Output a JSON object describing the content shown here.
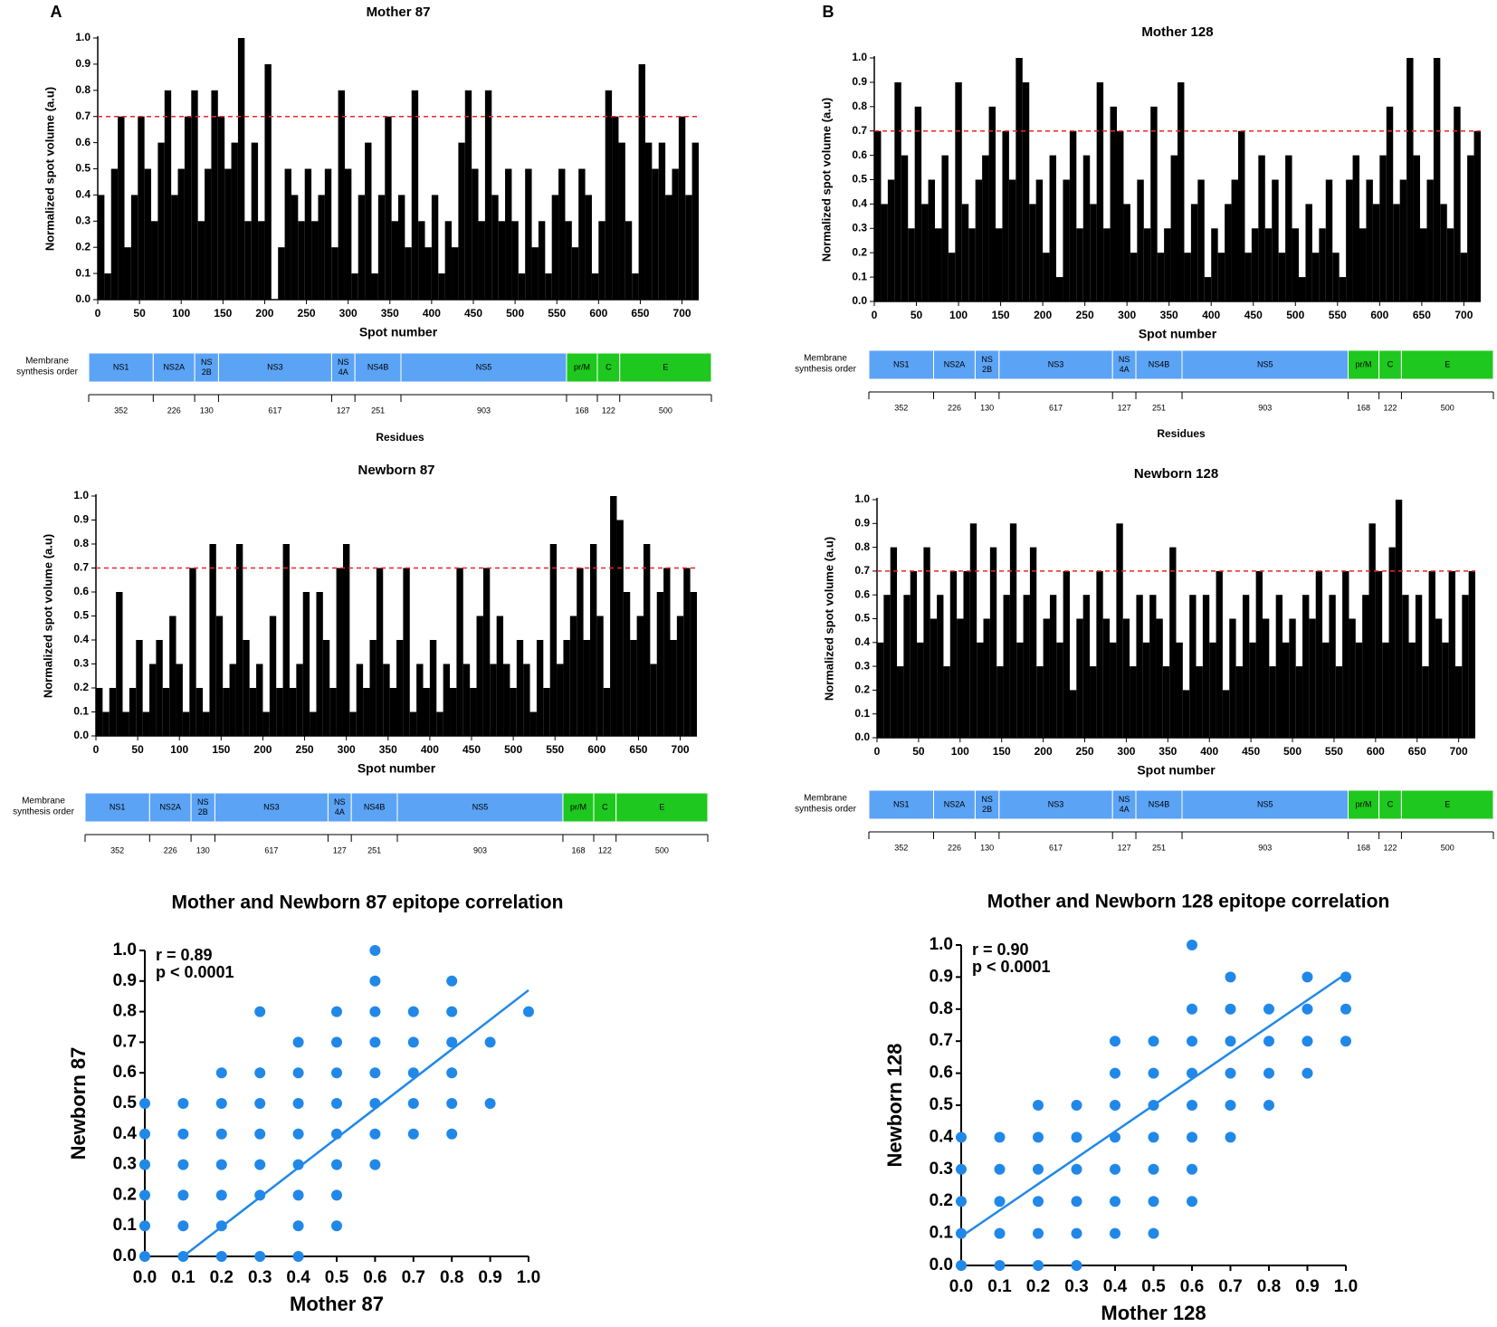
{
  "panel_labels": [
    "A",
    "B"
  ],
  "genome_map": {
    "row_label": [
      "Membrane",
      "synthesis order"
    ],
    "residues_label": "Residues",
    "segments": [
      {
        "label": [
          "NS1"
        ],
        "residues": 352,
        "color": "#5ba3f5"
      },
      {
        "label": [
          "NS2A"
        ],
        "residues": 226,
        "color": "#5ba3f5"
      },
      {
        "label": [
          "NS",
          "2B"
        ],
        "residues": 130,
        "color": "#5ba3f5"
      },
      {
        "label": [
          "NS3"
        ],
        "residues": 617,
        "color": "#5ba3f5"
      },
      {
        "label": [
          "NS",
          "4A"
        ],
        "residues": 127,
        "color": "#5ba3f5"
      },
      {
        "label": [
          "NS4B"
        ],
        "residues": 251,
        "color": "#5ba3f5"
      },
      {
        "label": [
          "NS5"
        ],
        "residues": 903,
        "color": "#5ba3f5"
      },
      {
        "label": [
          "pr/M"
        ],
        "residues": 168,
        "color": "#1ec81e"
      },
      {
        "label": [
          "C"
        ],
        "residues": 122,
        "color": "#1ec81e"
      },
      {
        "label": [
          "E"
        ],
        "residues": 500,
        "color": "#1ec81e"
      }
    ]
  },
  "chart_data": [
    {
      "type": "bar",
      "title": "Mother 87",
      "x_label": "Spot number",
      "y_label": "Normalized spot volume (a.u)",
      "color": "#000000",
      "x": [
        0,
        8,
        16,
        24,
        32,
        40,
        48,
        56,
        64,
        72,
        80,
        88,
        96,
        104,
        112,
        120,
        128,
        136,
        144,
        152,
        160,
        168,
        176,
        184,
        192,
        200,
        208,
        216,
        224,
        232,
        240,
        248,
        256,
        264,
        272,
        280,
        288,
        296,
        304,
        312,
        320,
        328,
        336,
        344,
        352,
        360,
        368,
        376,
        384,
        392,
        400,
        408,
        416,
        424,
        432,
        440,
        448,
        456,
        464,
        472,
        480,
        488,
        496,
        504,
        512,
        520,
        528,
        536,
        544,
        552,
        560,
        568,
        576,
        584,
        592,
        600,
        608,
        616,
        624,
        632,
        640,
        648,
        656,
        664,
        672,
        680,
        688,
        696,
        704,
        712
      ],
      "values": [
        0.4,
        0.1,
        0.5,
        0.7,
        0.2,
        0.4,
        0.7,
        0.5,
        0.3,
        0.6,
        0.8,
        0.4,
        0.5,
        0.7,
        0.8,
        0.3,
        0.5,
        0.8,
        0.7,
        0.5,
        0.6,
        1.0,
        0.3,
        0.6,
        0.3,
        0.9,
        0.0,
        0.2,
        0.5,
        0.4,
        0.3,
        0.5,
        0.3,
        0.4,
        0.5,
        0.2,
        0.8,
        0.5,
        0.1,
        0.4,
        0.6,
        0.1,
        0.4,
        0.7,
        0.3,
        0.4,
        0.2,
        0.8,
        0.3,
        0.2,
        0.4,
        0.1,
        0.3,
        0.2,
        0.6,
        0.8,
        0.5,
        0.3,
        0.8,
        0.4,
        0.3,
        0.5,
        0.3,
        0.1,
        0.5,
        0.2,
        0.3,
        0.1,
        0.4,
        0.5,
        0.3,
        0.2,
        0.5,
        0.4,
        0.1,
        0.3,
        0.8,
        0.7,
        0.6,
        0.3,
        0.1,
        0.9,
        0.6,
        0.5,
        0.6,
        0.4,
        0.5,
        0.7,
        0.4,
        0.6
      ],
      "threshold": 0.7,
      "threshold_color": "#e8262a",
      "xlim": [
        0,
        720
      ],
      "xticks": [
        0,
        50,
        100,
        150,
        200,
        250,
        300,
        350,
        400,
        450,
        500,
        550,
        600,
        650,
        700
      ],
      "ylim": [
        0,
        1
      ],
      "yticks": [
        {
          "value": 0,
          "label": "0.0"
        },
        0.1,
        0.2,
        0.3,
        0.4,
        0.5,
        0.6,
        0.7,
        0.8,
        0.9,
        {
          "value": 1,
          "label": "1.0"
        }
      ]
    },
    {
      "type": "bar",
      "title": "Mother 128",
      "x_label": "Spot number",
      "y_label": "Normalized spot volume (a.u)",
      "color": "#000000",
      "x": [
        0,
        8,
        16,
        24,
        32,
        40,
        48,
        56,
        64,
        72,
        80,
        88,
        96,
        104,
        112,
        120,
        128,
        136,
        144,
        152,
        160,
        168,
        176,
        184,
        192,
        200,
        208,
        216,
        224,
        232,
        240,
        248,
        256,
        264,
        272,
        280,
        288,
        296,
        304,
        312,
        320,
        328,
        336,
        344,
        352,
        360,
        368,
        376,
        384,
        392,
        400,
        408,
        416,
        424,
        432,
        440,
        448,
        456,
        464,
        472,
        480,
        488,
        496,
        504,
        512,
        520,
        528,
        536,
        544,
        552,
        560,
        568,
        576,
        584,
        592,
        600,
        608,
        616,
        624,
        632,
        640,
        648,
        656,
        664,
        672,
        680,
        688,
        696,
        704,
        712
      ],
      "values": [
        0.7,
        0.4,
        0.5,
        0.9,
        0.6,
        0.3,
        0.8,
        0.4,
        0.5,
        0.3,
        0.6,
        0.2,
        0.9,
        0.4,
        0.3,
        0.5,
        0.6,
        0.8,
        0.3,
        0.7,
        0.5,
        1.0,
        0.9,
        0.4,
        0.5,
        0.2,
        0.6,
        0.1,
        0.5,
        0.7,
        0.3,
        0.6,
        0.4,
        0.9,
        0.3,
        0.8,
        0.7,
        0.4,
        0.2,
        0.5,
        0.3,
        0.8,
        0.2,
        0.3,
        0.6,
        0.9,
        0.2,
        0.4,
        0.5,
        0.1,
        0.3,
        0.2,
        0.4,
        0.5,
        0.7,
        0.2,
        0.3,
        0.6,
        0.3,
        0.5,
        0.2,
        0.6,
        0.3,
        0.1,
        0.4,
        0.2,
        0.3,
        0.5,
        0.2,
        0.1,
        0.5,
        0.6,
        0.3,
        0.5,
        0.4,
        0.6,
        0.8,
        0.4,
        0.5,
        1.0,
        0.6,
        0.3,
        0.5,
        1.0,
        0.4,
        0.3,
        0.8,
        0.2,
        0.6,
        0.7
      ],
      "threshold": 0.7,
      "threshold_color": "#e8262a",
      "xlim": [
        0,
        720
      ],
      "xticks": [
        0,
        50,
        100,
        150,
        200,
        250,
        300,
        350,
        400,
        450,
        500,
        550,
        600,
        650,
        700
      ],
      "ylim": [
        0,
        1
      ],
      "yticks": [
        {
          "value": 0,
          "label": "0.0"
        },
        0.1,
        0.2,
        0.3,
        0.4,
        0.5,
        0.6,
        0.7,
        0.8,
        0.9,
        {
          "value": 1,
          "label": "1.0"
        }
      ]
    },
    {
      "type": "bar",
      "title": "Newborn 87",
      "x_label": "Spot number",
      "y_label": "Normalized spot volume (a.u)",
      "color": "#000000",
      "x": [
        0,
        8,
        16,
        24,
        32,
        40,
        48,
        56,
        64,
        72,
        80,
        88,
        96,
        104,
        112,
        120,
        128,
        136,
        144,
        152,
        160,
        168,
        176,
        184,
        192,
        200,
        208,
        216,
        224,
        232,
        240,
        248,
        256,
        264,
        272,
        280,
        288,
        296,
        304,
        312,
        320,
        328,
        336,
        344,
        352,
        360,
        368,
        376,
        384,
        392,
        400,
        408,
        416,
        424,
        432,
        440,
        448,
        456,
        464,
        472,
        480,
        488,
        496,
        504,
        512,
        520,
        528,
        536,
        544,
        552,
        560,
        568,
        576,
        584,
        592,
        600,
        608,
        616,
        624,
        632,
        640,
        648,
        656,
        664,
        672,
        680,
        688,
        696,
        704,
        712
      ],
      "values": [
        0.2,
        0.1,
        0.2,
        0.6,
        0.1,
        0.2,
        0.4,
        0.1,
        0.3,
        0.4,
        0.2,
        0.5,
        0.3,
        0.1,
        0.7,
        0.2,
        0.1,
        0.8,
        0.5,
        0.2,
        0.3,
        0.8,
        0.4,
        0.2,
        0.3,
        0.1,
        0.5,
        0.2,
        0.8,
        0.2,
        0.3,
        0.6,
        0.1,
        0.6,
        0.4,
        0.2,
        0.7,
        0.8,
        0.1,
        0.3,
        0.2,
        0.4,
        0.7,
        0.3,
        0.2,
        0.4,
        0.7,
        0.1,
        0.3,
        0.2,
        0.4,
        0.1,
        0.3,
        0.2,
        0.7,
        0.3,
        0.2,
        0.5,
        0.7,
        0.3,
        0.5,
        0.3,
        0.2,
        0.4,
        0.3,
        0.1,
        0.4,
        0.2,
        0.8,
        0.3,
        0.4,
        0.5,
        0.7,
        0.4,
        0.8,
        0.5,
        0.2,
        1.0,
        0.9,
        0.6,
        0.4,
        0.5,
        0.8,
        0.3,
        0.6,
        0.7,
        0.4,
        0.5,
        0.7,
        0.6
      ],
      "threshold": 0.7,
      "threshold_color": "#e8262a",
      "xlim": [
        0,
        720
      ],
      "xticks": [
        0,
        50,
        100,
        150,
        200,
        250,
        300,
        350,
        400,
        450,
        500,
        550,
        600,
        650,
        700
      ],
      "ylim": [
        0,
        1
      ],
      "yticks": [
        {
          "value": 0,
          "label": "0.0"
        },
        0.1,
        0.2,
        0.3,
        0.4,
        0.5,
        0.6,
        0.7,
        0.8,
        0.9,
        {
          "value": 1,
          "label": "1.0"
        }
      ]
    },
    {
      "type": "bar",
      "title": "Newborn 128",
      "x_label": "Spot number",
      "y_label": "Normalized spot volume (a.u)",
      "color": "#000000",
      "x": [
        0,
        8,
        16,
        24,
        32,
        40,
        48,
        56,
        64,
        72,
        80,
        88,
        96,
        104,
        112,
        120,
        128,
        136,
        144,
        152,
        160,
        168,
        176,
        184,
        192,
        200,
        208,
        216,
        224,
        232,
        240,
        248,
        256,
        264,
        272,
        280,
        288,
        296,
        304,
        312,
        320,
        328,
        336,
        344,
        352,
        360,
        368,
        376,
        384,
        392,
        400,
        408,
        416,
        424,
        432,
        440,
        448,
        456,
        464,
        472,
        480,
        488,
        496,
        504,
        512,
        520,
        528,
        536,
        544,
        552,
        560,
        568,
        576,
        584,
        592,
        600,
        608,
        616,
        624,
        632,
        640,
        648,
        656,
        664,
        672,
        680,
        688,
        696,
        704,
        712
      ],
      "values": [
        0.4,
        0.6,
        0.8,
        0.3,
        0.6,
        0.7,
        0.4,
        0.8,
        0.5,
        0.6,
        0.3,
        0.7,
        0.5,
        0.7,
        0.9,
        0.4,
        0.5,
        0.8,
        0.3,
        0.6,
        0.9,
        0.4,
        0.6,
        0.8,
        0.3,
        0.5,
        0.6,
        0.4,
        0.7,
        0.2,
        0.5,
        0.6,
        0.3,
        0.7,
        0.5,
        0.4,
        0.9,
        0.5,
        0.3,
        0.6,
        0.4,
        0.6,
        0.5,
        0.3,
        0.8,
        0.4,
        0.2,
        0.6,
        0.3,
        0.6,
        0.4,
        0.7,
        0.2,
        0.5,
        0.3,
        0.6,
        0.4,
        0.7,
        0.5,
        0.3,
        0.6,
        0.4,
        0.5,
        0.3,
        0.6,
        0.5,
        0.7,
        0.4,
        0.6,
        0.3,
        0.7,
        0.5,
        0.4,
        0.6,
        0.9,
        0.7,
        0.4,
        0.8,
        1.0,
        0.6,
        0.4,
        0.6,
        0.3,
        0.7,
        0.5,
        0.4,
        0.7,
        0.3,
        0.6,
        0.7
      ],
      "threshold": 0.7,
      "threshold_color": "#e8262a",
      "xlim": [
        0,
        720
      ],
      "xticks": [
        0,
        50,
        100,
        150,
        200,
        250,
        300,
        350,
        400,
        450,
        500,
        550,
        600,
        650,
        700
      ],
      "ylim": [
        0,
        1
      ],
      "yticks": [
        {
          "value": 0,
          "label": "0.0"
        },
        0.1,
        0.2,
        0.3,
        0.4,
        0.5,
        0.6,
        0.7,
        0.8,
        0.9,
        {
          "value": 1,
          "label": "1.0"
        }
      ]
    },
    {
      "type": "scatter",
      "title": "Mother and Newborn 87 epitope correlation",
      "x_label": "Mother 87",
      "y_label": "Newborn 87",
      "color": "#2188e8",
      "annotations": [
        "r = 0.89",
        "p < 0.0001"
      ],
      "x": [
        0,
        0,
        0,
        0,
        0,
        0,
        0.1,
        0.1,
        0.1,
        0.1,
        0.1,
        0.1,
        0.2,
        0.2,
        0.2,
        0.2,
        0.2,
        0.2,
        0.2,
        0.3,
        0.3,
        0.3,
        0.3,
        0.3,
        0.3,
        0.3,
        0.4,
        0.4,
        0.4,
        0.4,
        0.4,
        0.4,
        0.4,
        0.4,
        0.5,
        0.5,
        0.5,
        0.5,
        0.5,
        0.5,
        0.5,
        0.5,
        0.6,
        0.6,
        0.6,
        0.6,
        0.6,
        0.6,
        0.6,
        0.6,
        0.7,
        0.7,
        0.7,
        0.7,
        0.7,
        0.8,
        0.8,
        0.8,
        0.8,
        0.8,
        0.8,
        0.9,
        0.9,
        1.0
      ],
      "values": [
        0,
        0.1,
        0.2,
        0.3,
        0.4,
        0.5,
        0,
        0.1,
        0.2,
        0.3,
        0.4,
        0.5,
        0,
        0.1,
        0.2,
        0.3,
        0.4,
        0.5,
        0.6,
        0,
        0.2,
        0.3,
        0.4,
        0.5,
        0.6,
        0.8,
        0,
        0.1,
        0.2,
        0.3,
        0.4,
        0.5,
        0.6,
        0.7,
        0.1,
        0.2,
        0.3,
        0.4,
        0.5,
        0.6,
        0.7,
        0.8,
        0.3,
        0.4,
        0.5,
        0.6,
        0.7,
        0.8,
        0.9,
        1.0,
        0.4,
        0.5,
        0.6,
        0.7,
        0.8,
        0.4,
        0.5,
        0.6,
        0.7,
        0.8,
        0.9,
        0.5,
        0.7,
        0.8
      ],
      "fit_line": {
        "x": [
          0.1,
          1.0
        ],
        "values": [
          0,
          0.87
        ]
      },
      "xlim": [
        0,
        1
      ],
      "xticks": [
        {
          "value": 0,
          "label": "0.0"
        },
        0.1,
        0.2,
        0.3,
        0.4,
        0.5,
        0.6,
        0.7,
        0.8,
        0.9,
        {
          "value": 1,
          "label": "1.0"
        }
      ],
      "ylim": [
        0,
        1
      ],
      "yticks": [
        {
          "value": 0,
          "label": "0.0"
        },
        0.1,
        0.2,
        0.3,
        0.4,
        0.5,
        0.6,
        0.7,
        0.8,
        0.9,
        {
          "value": 1,
          "label": "1.0"
        }
      ]
    },
    {
      "type": "scatter",
      "title": "Mother and Newborn 128 epitope correlation",
      "x_label": "Mother 128",
      "y_label": "Newborn 128",
      "color": "#2188e8",
      "annotations": [
        "r = 0.90",
        "p < 0.0001"
      ],
      "x": [
        0,
        0,
        0,
        0,
        0,
        0.1,
        0.1,
        0.1,
        0.1,
        0.1,
        0.2,
        0.2,
        0.2,
        0.2,
        0.2,
        0.2,
        0.3,
        0.3,
        0.3,
        0.3,
        0.3,
        0.3,
        0.4,
        0.4,
        0.4,
        0.4,
        0.4,
        0.4,
        0.4,
        0.5,
        0.5,
        0.5,
        0.5,
        0.5,
        0.5,
        0.5,
        0.6,
        0.6,
        0.6,
        0.6,
        0.6,
        0.6,
        0.6,
        0.6,
        0.7,
        0.7,
        0.7,
        0.7,
        0.7,
        0.7,
        0.8,
        0.8,
        0.8,
        0.8,
        0.9,
        0.9,
        0.9,
        0.9,
        1.0,
        1.0,
        1.0
      ],
      "values": [
        0,
        0.1,
        0.2,
        0.3,
        0.4,
        0,
        0.1,
        0.2,
        0.3,
        0.4,
        0,
        0.1,
        0.2,
        0.3,
        0.4,
        0.5,
        0,
        0.1,
        0.2,
        0.3,
        0.4,
        0.5,
        0.1,
        0.2,
        0.3,
        0.4,
        0.5,
        0.6,
        0.7,
        0.1,
        0.2,
        0.3,
        0.4,
        0.5,
        0.6,
        0.7,
        0.2,
        0.3,
        0.4,
        0.5,
        0.6,
        0.7,
        0.8,
        1.0,
        0.4,
        0.5,
        0.6,
        0.7,
        0.8,
        0.9,
        0.5,
        0.6,
        0.7,
        0.8,
        0.6,
        0.7,
        0.8,
        0.9,
        0.7,
        0.8,
        0.9
      ],
      "fit_line": {
        "x": [
          0,
          1.0
        ],
        "values": [
          0.09,
          0.91
        ]
      },
      "xlim": [
        0,
        1
      ],
      "xticks": [
        {
          "value": 0,
          "label": "0.0"
        },
        0.1,
        0.2,
        0.3,
        0.4,
        0.5,
        0.6,
        0.7,
        0.8,
        0.9,
        {
          "value": 1,
          "label": "1.0"
        }
      ],
      "ylim": [
        0,
        1
      ],
      "yticks": [
        {
          "value": 0,
          "label": "0.0"
        },
        0.1,
        0.2,
        0.3,
        0.4,
        0.5,
        0.6,
        0.7,
        0.8,
        0.9,
        {
          "value": 1,
          "label": "1.0"
        }
      ]
    }
  ]
}
